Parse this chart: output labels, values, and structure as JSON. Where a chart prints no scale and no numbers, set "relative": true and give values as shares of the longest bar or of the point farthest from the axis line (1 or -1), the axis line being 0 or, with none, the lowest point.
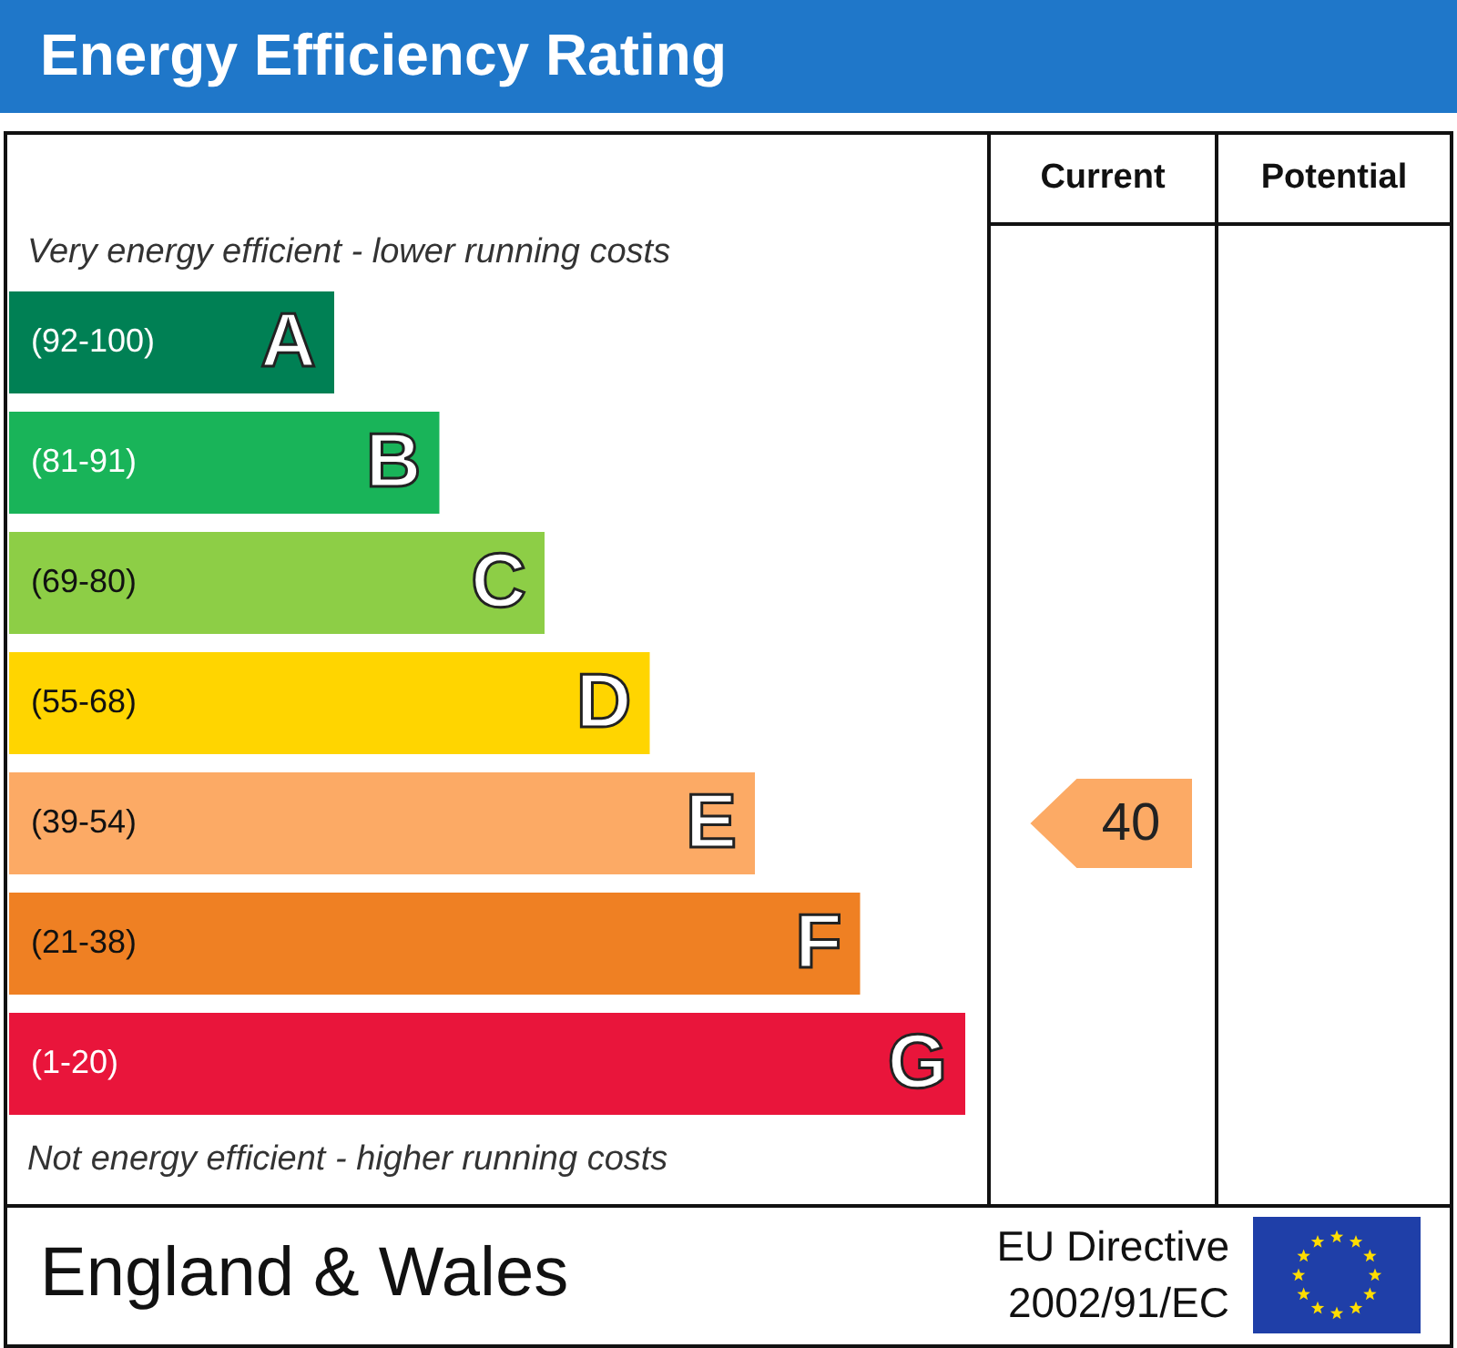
{
  "chart_data": {
    "type": "bar",
    "orientation": "horizontal",
    "relative": true,
    "title": "Energy Efficiency Rating",
    "categories": [
      "A",
      "B",
      "C",
      "D",
      "E",
      "F",
      "G"
    ],
    "values": [
      0.34,
      0.45,
      0.56,
      0.67,
      0.78,
      0.89,
      1.0
    ],
    "colors": [
      "#008054",
      "#19b459",
      "#8dce46",
      "#ffd500",
      "#fcaa65",
      "#ef8023",
      "#e9153b"
    ],
    "annotations": [
      "Very energy efficient - lower running costs",
      "Not energy efficient - higher running costs",
      "Current",
      "Potential",
      "40",
      "England & Wales",
      "EU Directive",
      "2002/91/EC",
      "(92-100)",
      "(81-91)",
      "(69-80)",
      "(55-68)",
      "(39-54)",
      "(21-38)",
      "(1-20)"
    ]
  }
}
